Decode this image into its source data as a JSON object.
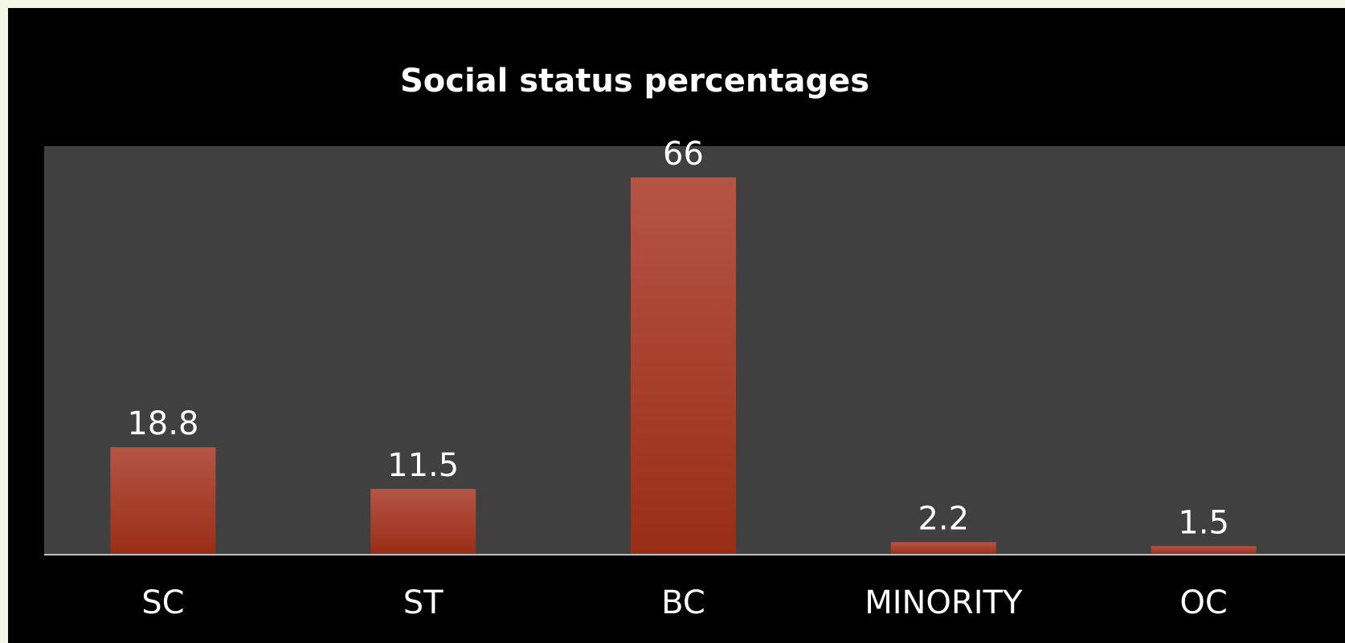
{
  "chart_data": {
    "type": "bar",
    "title": "Social status percentages",
    "categories": [
      "SC",
      "ST",
      "BC",
      "MINORITY",
      "OC"
    ],
    "values": [
      18.8,
      11.5,
      66,
      2.2,
      1.5
    ],
    "value_labels": [
      "18.8",
      "11.5",
      "66",
      "2.2",
      "1.5"
    ],
    "xlabel": "",
    "ylabel": "",
    "ylim": [
      0,
      70
    ],
    "grid": false,
    "legend": "none"
  },
  "colors": {
    "background": "#000000",
    "border": "#f5f7e6",
    "plot_area": "#404040",
    "bar_top": "#b55446",
    "bar_bottom": "#992d15",
    "axis_line": "#bfbfbf",
    "text": "#ffffff"
  }
}
